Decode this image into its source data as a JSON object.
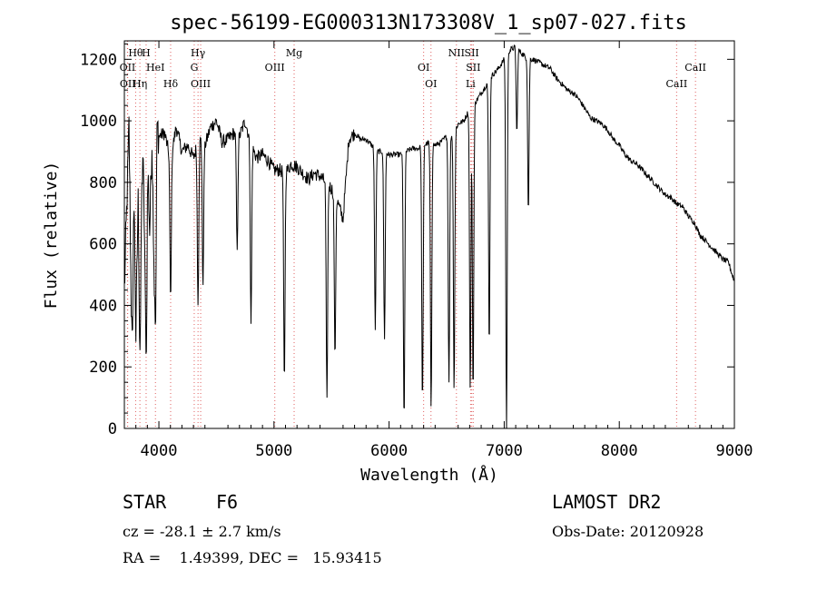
{
  "chart_data": {
    "type": "line",
    "title": "spec-56199-EG000313N173308V_1_sp07-027.fits",
    "xlabel": "Wavelength (Å)",
    "ylabel": "Flux (relative)",
    "xlim": [
      3700,
      9000
    ],
    "ylim": [
      0,
      1260
    ],
    "x_ticks": [
      "4000",
      "5000",
      "6000",
      "7000",
      "8000",
      "9000"
    ],
    "y_ticks": [
      "0",
      "200",
      "400",
      "600",
      "800",
      "1000",
      "1200"
    ],
    "series": [
      {
        "name": "",
        "color": "#000000",
        "points": [
          [
            3700,
            450
          ],
          [
            3720,
            700
          ],
          [
            3740,
            980
          ],
          [
            3760,
            420
          ],
          [
            3780,
            850
          ],
          [
            3800,
            300
          ],
          [
            3820,
            760
          ],
          [
            3840,
            600
          ],
          [
            3860,
            890
          ],
          [
            3880,
            560
          ],
          [
            3900,
            900
          ],
          [
            3920,
            640
          ],
          [
            3940,
            940
          ],
          [
            3960,
            500
          ],
          [
            3980,
            1000
          ],
          [
            4000,
            950
          ],
          [
            4050,
            960
          ],
          [
            4100,
            870
          ],
          [
            4150,
            980
          ],
          [
            4200,
            900
          ],
          [
            4250,
            920
          ],
          [
            4300,
            880
          ],
          [
            4350,
            940
          ],
          [
            4400,
            920
          ],
          [
            4450,
            980
          ],
          [
            4500,
            1000
          ],
          [
            4550,
            930
          ],
          [
            4600,
            940
          ],
          [
            4650,
            960
          ],
          [
            4700,
            950
          ],
          [
            4750,
            1000
          ],
          [
            4800,
            920
          ],
          [
            4850,
            880
          ],
          [
            4900,
            890
          ],
          [
            4950,
            870
          ],
          [
            5000,
            840
          ],
          [
            5050,
            840
          ],
          [
            5100,
            830
          ],
          [
            5150,
            860
          ],
          [
            5200,
            850
          ],
          [
            5250,
            830
          ],
          [
            5300,
            810
          ],
          [
            5350,
            830
          ],
          [
            5400,
            820
          ],
          [
            5450,
            800
          ],
          [
            5500,
            780
          ],
          [
            5550,
            740
          ],
          [
            5600,
            680
          ],
          [
            5650,
            940
          ],
          [
            5700,
            960
          ],
          [
            5750,
            940
          ],
          [
            5800,
            940
          ],
          [
            5850,
            920
          ],
          [
            5900,
            900
          ],
          [
            5950,
            900
          ],
          [
            6000,
            890
          ],
          [
            6050,
            890
          ],
          [
            6100,
            890
          ],
          [
            6150,
            900
          ],
          [
            6200,
            910
          ],
          [
            6250,
            910
          ],
          [
            6300,
            920
          ],
          [
            6350,
            930
          ],
          [
            6400,
            920
          ],
          [
            6450,
            930
          ],
          [
            6500,
            950
          ],
          [
            6550,
            950
          ],
          [
            6600,
            990
          ],
          [
            6650,
            1000
          ],
          [
            6700,
            1040
          ],
          [
            6750,
            1060
          ],
          [
            6800,
            1090
          ],
          [
            6850,
            1120
          ],
          [
            6900,
            1150
          ],
          [
            6950,
            1170
          ],
          [
            7000,
            1200
          ],
          [
            7050,
            1230
          ],
          [
            7100,
            1240
          ],
          [
            7150,
            1220
          ],
          [
            7200,
            1200
          ],
          [
            7250,
            1200
          ],
          [
            7300,
            1190
          ],
          [
            7350,
            1180
          ],
          [
            7400,
            1170
          ],
          [
            7450,
            1140
          ],
          [
            7500,
            1120
          ],
          [
            7550,
            1100
          ],
          [
            7600,
            1090
          ],
          [
            7650,
            1070
          ],
          [
            7700,
            1040
          ],
          [
            7750,
            1010
          ],
          [
            7800,
            1000
          ],
          [
            7850,
            990
          ],
          [
            7900,
            970
          ],
          [
            7950,
            940
          ],
          [
            8000,
            920
          ],
          [
            8050,
            890
          ],
          [
            8100,
            870
          ],
          [
            8150,
            860
          ],
          [
            8200,
            840
          ],
          [
            8250,
            820
          ],
          [
            8300,
            800
          ],
          [
            8350,
            780
          ],
          [
            8400,
            760
          ],
          [
            8450,
            750
          ],
          [
            8500,
            730
          ],
          [
            8550,
            720
          ],
          [
            8600,
            690
          ],
          [
            8650,
            670
          ],
          [
            8700,
            630
          ],
          [
            8750,
            610
          ],
          [
            8800,
            590
          ],
          [
            8850,
            570
          ],
          [
            8900,
            550
          ],
          [
            8950,
            540
          ],
          [
            8980,
            500
          ],
          [
            9000,
            480
          ]
        ],
        "absorption_dips": [
          [
            3770,
            300
          ],
          [
            3835,
            250
          ],
          [
            3890,
            220
          ],
          [
            3970,
            320
          ],
          [
            4102,
            420
          ],
          [
            4340,
            400
          ],
          [
            4383,
            460
          ],
          [
            4680,
            580
          ],
          [
            4800,
            340
          ],
          [
            5090,
            150
          ],
          [
            5460,
            100
          ],
          [
            5530,
            230
          ],
          [
            5880,
            320
          ],
          [
            5960,
            290
          ],
          [
            6130,
            20
          ],
          [
            6290,
            80
          ],
          [
            6365,
            60
          ],
          [
            6520,
            150
          ],
          [
            6565,
            120
          ],
          [
            6705,
            120
          ],
          [
            6730,
            110
          ],
          [
            6870,
            260
          ],
          [
            7020,
            0
          ],
          [
            7110,
            960
          ],
          [
            7210,
            700
          ]
        ]
      }
    ],
    "line_markers": [
      {
        "label": "Hθ",
        "x": 3798,
        "row": 1,
        "color": "#e06060"
      },
      {
        "label": "OII",
        "x": 3727,
        "row": 2,
        "color": "#e06060"
      },
      {
        "label": "OII",
        "x": 3729,
        "row": 3,
        "color": "#e06060"
      },
      {
        "label": "Hη",
        "x": 3835,
        "row": 3,
        "color": "#e06060"
      },
      {
        "label": "H",
        "x": 3889,
        "row": 1,
        "color": "#e06060"
      },
      {
        "label": "HeI",
        "x": 3970,
        "row": 2,
        "color": "#e06060"
      },
      {
        "label": "Hδ",
        "x": 4102,
        "row": 3,
        "color": "#e06060"
      },
      {
        "label": "Hγ",
        "x": 4340,
        "row": 1,
        "color": "#e06060"
      },
      {
        "label": "G",
        "x": 4307,
        "row": 2,
        "color": "#e06060"
      },
      {
        "label": "OIII",
        "x": 4363,
        "row": 3,
        "color": "#e06060"
      },
      {
        "label": "OIII",
        "x": 5007,
        "row": 2,
        "color": "#e06060"
      },
      {
        "label": "Mg",
        "x": 5175,
        "row": 1,
        "color": "#e06060"
      },
      {
        "label": "OI",
        "x": 6300,
        "row": 2,
        "color": "#e06060"
      },
      {
        "label": "OI",
        "x": 6364,
        "row": 3,
        "color": "#e06060"
      },
      {
        "label": "NII",
        "x": 6585,
        "row": 1,
        "color": "#e06060"
      },
      {
        "label": "SII",
        "x": 6718,
        "row": 1,
        "color": "#e06060"
      },
      {
        "label": "SII",
        "x": 6731,
        "row": 2,
        "color": "#e06060"
      },
      {
        "label": "Li",
        "x": 6708,
        "row": 3,
        "color": "#e06060"
      },
      {
        "label": "CaII",
        "x": 8662,
        "row": 2,
        "color": "#e06060"
      },
      {
        "label": "CaII",
        "x": 8498,
        "row": 3,
        "color": "#e06060"
      }
    ]
  },
  "info": {
    "object_class": "STAR",
    "subclass": "F6",
    "survey": "LAMOST DR2",
    "velocity": "cz = -28.1 ± 2.7 km/s",
    "obs_date": "Obs-Date: 20120928",
    "coords": "RA =    1.49399, DEC =   15.93415"
  }
}
